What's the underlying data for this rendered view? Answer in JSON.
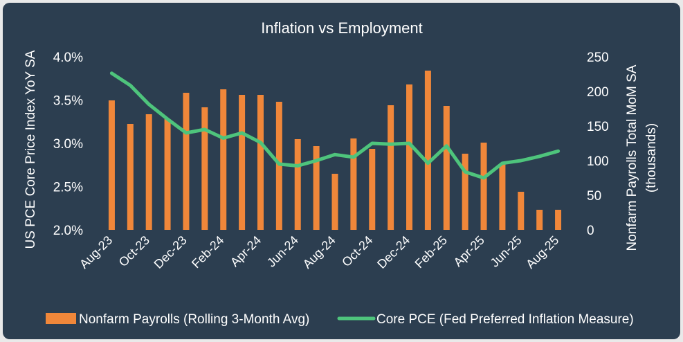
{
  "chart_data": {
    "type": "bar",
    "title": "Inflation vs Employment",
    "ylabel_left": "US PCE Core Price Index YoY SA",
    "ylabel_right_line1": "Nonfarm Payrolls Total MoM SA",
    "ylabel_right_line2": "(thousands)",
    "ylim_left": [
      2.0,
      4.0
    ],
    "ylim_right": [
      0,
      250
    ],
    "left_ticks": [
      "4.0%",
      "3.5%",
      "3.0%",
      "2.5%",
      "2.0%"
    ],
    "right_ticks": [
      "250",
      "200",
      "150",
      "100",
      "50",
      "0"
    ],
    "x_tick_labels": [
      "Aug-23",
      "Oct-23",
      "Dec-23",
      "Feb-24",
      "Apr-24",
      "Jun-24",
      "Aug-24",
      "Oct-24",
      "Dec-24",
      "Feb-25",
      "Apr-25",
      "Jun-25",
      "Aug-25"
    ],
    "series": [
      {
        "name": "Nonfarm Payrolls (Rolling 3-Month Avg)",
        "kind": "bar",
        "axis": "right",
        "color": "#f0873a",
        "values": [
          187,
          153,
          167,
          160,
          198,
          177,
          203,
          195,
          195,
          185,
          131,
          121,
          81,
          132,
          117,
          180,
          210,
          230,
          179,
          110,
          126,
          95,
          55,
          29,
          29
        ]
      },
      {
        "name": "Core PCE (Fed Preferred Inflation Measure)",
        "kind": "line",
        "axis": "left",
        "color": "#4ec47c",
        "values": [
          3.81,
          3.67,
          3.45,
          3.28,
          3.12,
          3.16,
          3.06,
          3.12,
          3.01,
          2.76,
          2.74,
          2.8,
          2.87,
          2.84,
          3.0,
          2.99,
          3.0,
          2.77,
          2.97,
          2.67,
          2.6,
          2.77,
          2.8,
          2.85,
          2.91
        ]
      }
    ],
    "legend_position": "bottom"
  }
}
